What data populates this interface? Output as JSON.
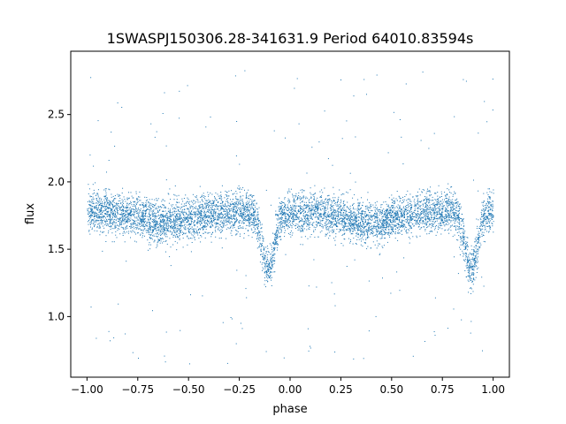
{
  "chart_data": {
    "type": "scatter",
    "title": "1SWASPJ150306.28-341631.9 Period 64010.83594s",
    "xlabel": "phase",
    "ylabel": "flux",
    "xlim": [
      -1.08,
      1.08
    ],
    "ylim": [
      0.55,
      2.97
    ],
    "xticks": [
      -1.0,
      -0.75,
      -0.5,
      -0.25,
      0.0,
      0.25,
      0.5,
      0.75,
      1.0
    ],
    "xtick_labels": [
      "−1.00",
      "−0.75",
      "−0.50",
      "−0.25",
      "0.00",
      "0.25",
      "0.50",
      "0.75",
      "1.00"
    ],
    "yticks": [
      1.0,
      1.5,
      2.0,
      2.5
    ],
    "ytick_labels": [
      "1.0",
      "1.5",
      "2.0",
      "2.5"
    ],
    "grid": false,
    "marker_color": "#1f77b4",
    "series": [
      {
        "phase_range": [
          -1.0,
          1.0
        ],
        "baseline_flux": 1.78,
        "typical_scatter": 0.15,
        "outlier_flux_range": [
          0.65,
          2.85
        ],
        "eclipses": [
          {
            "phase": -0.11,
            "min_flux": 1.35
          },
          {
            "phase": 0.89,
            "min_flux": 1.35
          }
        ],
        "secondary_dips": [
          {
            "phase": -0.61,
            "flux": 1.7
          },
          {
            "phase": 0.39,
            "flux": 1.7
          }
        ]
      }
    ]
  }
}
